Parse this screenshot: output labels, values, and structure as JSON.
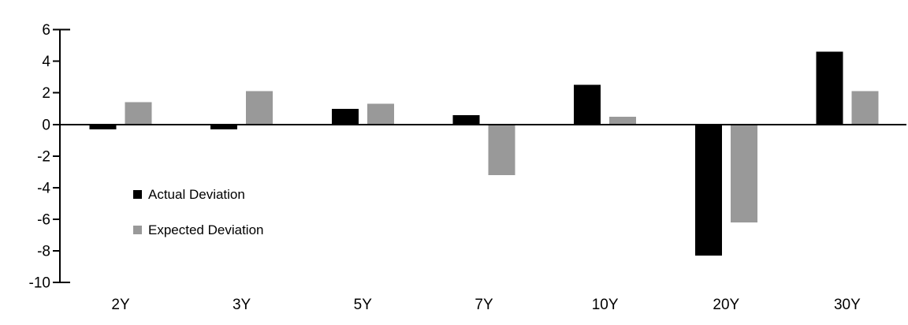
{
  "chart_data": {
    "type": "bar",
    "title": "",
    "xlabel": "",
    "ylabel": "",
    "categories": [
      "2Y",
      "3Y",
      "5Y",
      "7Y",
      "10Y",
      "20Y",
      "30Y"
    ],
    "series": [
      {
        "name": "Actual Deviation",
        "color": "#000000",
        "values": [
          -0.3,
          -0.3,
          1.0,
          0.6,
          2.5,
          -8.3,
          4.6
        ]
      },
      {
        "name": "Expected Deviation",
        "color": "#999999",
        "values": [
          1.4,
          2.1,
          1.3,
          -3.2,
          0.5,
          -6.2,
          2.1
        ]
      }
    ],
    "ylim": [
      -10,
      6
    ],
    "ytick_step": 2,
    "ytick_labels": [
      "6",
      "4",
      "2",
      "0",
      "-2",
      "-4",
      "-6",
      "-8",
      "-10"
    ],
    "grid": false,
    "legend_position": "inside-left",
    "axis_color": "#000000",
    "background": "#ffffff"
  }
}
